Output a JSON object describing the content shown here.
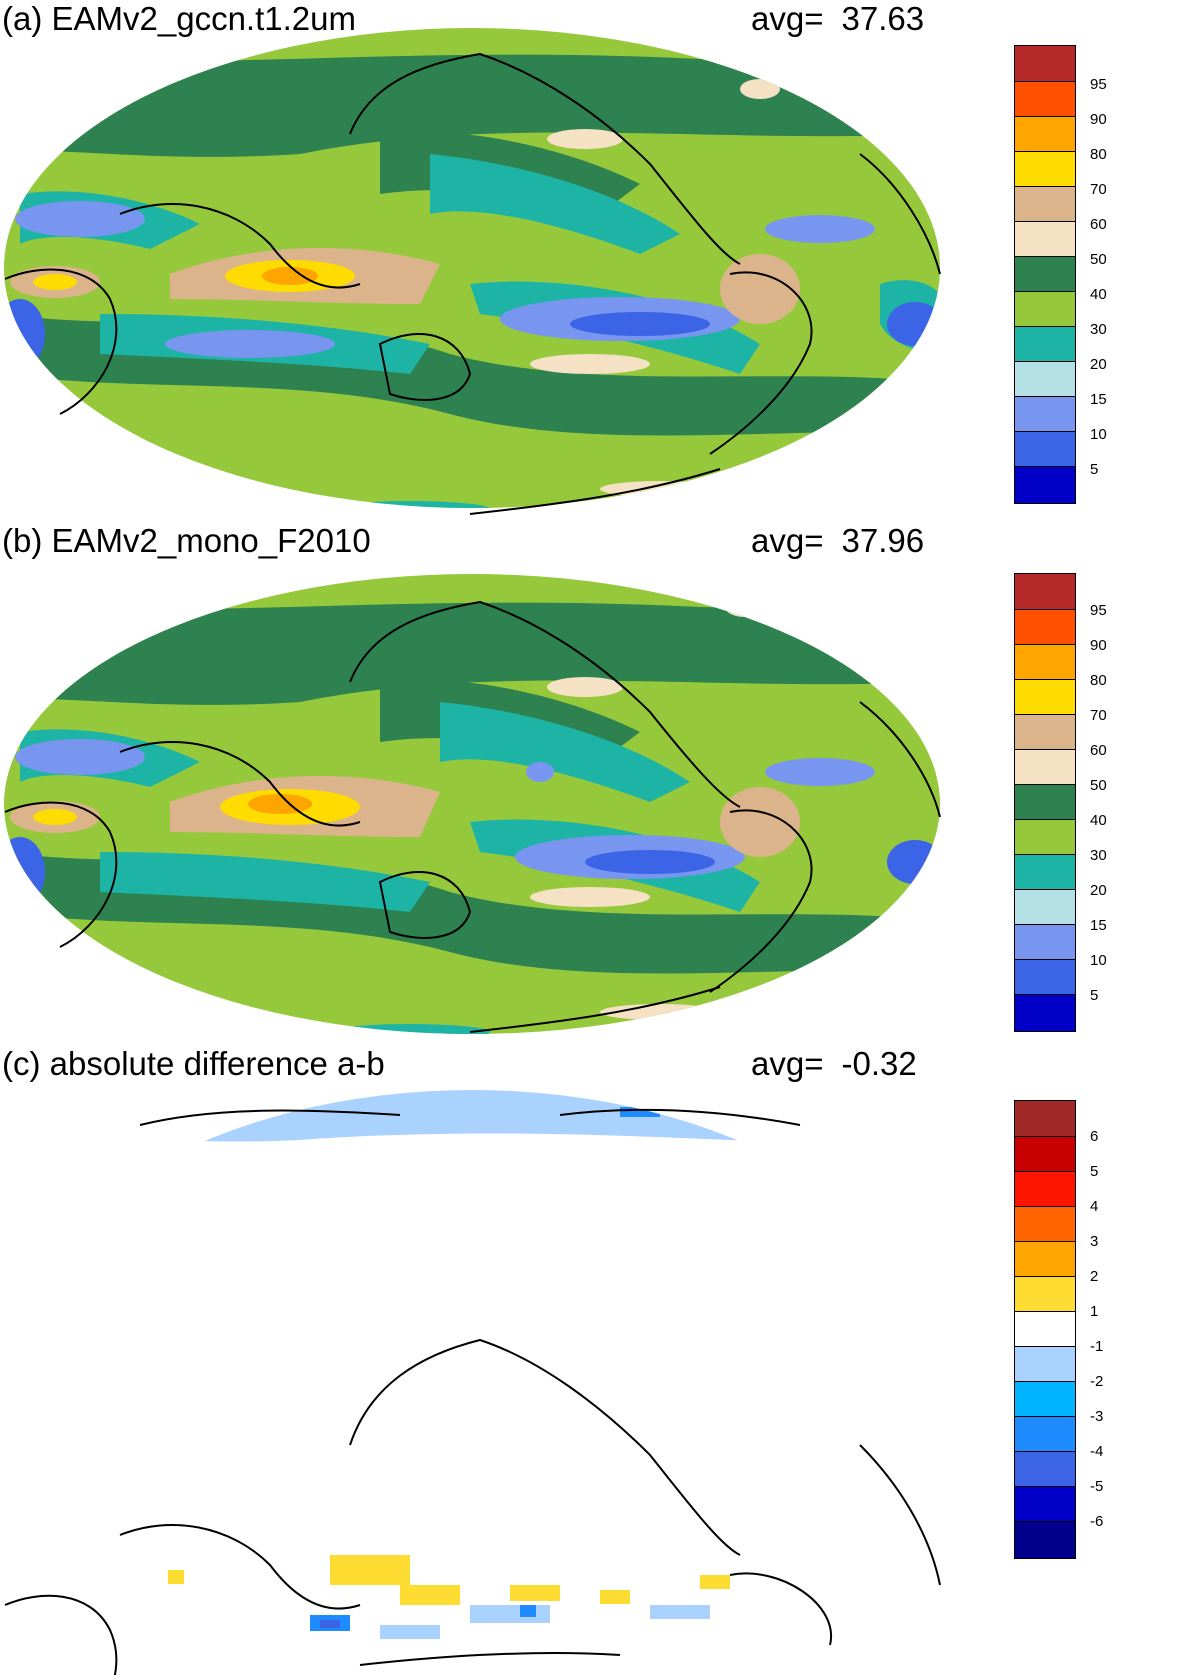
{
  "panels": [
    {
      "title": "(a) EAMv2_gccn.t1.2um",
      "avg_label": "avg=",
      "avg_value": "37.63",
      "legend": {
        "colors": [
          "#0000c8",
          "#3c64e6",
          "#7896f0",
          "#b4e1e6",
          "#1eb4a5",
          "#96c83c",
          "#2d8250",
          "#f5e1c3",
          "#dcb48c",
          "#ffdc00",
          "#ffa500",
          "#ff5000",
          "#b42828"
        ],
        "labels": [
          "5",
          "10",
          "15",
          "20",
          "30",
          "40",
          "50",
          "60",
          "70",
          "80",
          "90",
          "95"
        ]
      }
    },
    {
      "title": "(b) EAMv2_mono_F2010",
      "avg_label": "avg=",
      "avg_value": "37.96",
      "legend": {
        "colors": [
          "#0000c8",
          "#3c64e6",
          "#7896f0",
          "#b4e1e6",
          "#1eb4a5",
          "#96c83c",
          "#2d8250",
          "#f5e1c3",
          "#dcb48c",
          "#ffdc00",
          "#ffa500",
          "#ff5000",
          "#b42828"
        ],
        "labels": [
          "5",
          "10",
          "15",
          "20",
          "30",
          "40",
          "50",
          "60",
          "70",
          "80",
          "90",
          "95"
        ]
      }
    },
    {
      "title": "(c) absolute difference a-b",
      "avg_label": "avg=",
      "avg_value": "-0.32",
      "legend": {
        "colors": [
          "#00008c",
          "#0000c8",
          "#3c64e6",
          "#1e8cff",
          "#00b4ff",
          "#aad2ff",
          "#ffffff",
          "#ffdc32",
          "#ffa500",
          "#ff6400",
          "#ff1400",
          "#c80000",
          "#a02828"
        ],
        "labels": [
          "-6",
          "-5",
          "-4",
          "-3",
          "-2",
          "-1",
          "1",
          "2",
          "3",
          "4",
          "5",
          "6"
        ]
      }
    }
  ]
}
